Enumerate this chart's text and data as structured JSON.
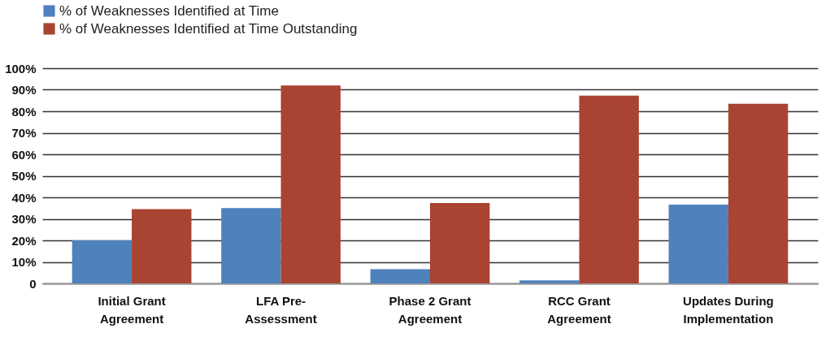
{
  "chart_data": {
    "type": "bar",
    "categories": [
      "Initial Grant\nAgreement",
      "LFA Pre-\nAssessment",
      "Phase 2 Grant\nAgreement",
      "RCC Grant\nAgreement",
      "Updates During\nImplementation"
    ],
    "series": [
      {
        "name": "% of Weaknesses Identified at Time",
        "color": "#4f81bd",
        "values": [
          20,
          35,
          6.6,
          1.4,
          36.6
        ]
      },
      {
        "name": "% of Weaknesses Identified at Time Outstanding",
        "color": "#a94432",
        "values": [
          34.5,
          92,
          37.4,
          87.3,
          83.5
        ]
      }
    ],
    "ylim": [
      0,
      100
    ],
    "yticks": [
      0,
      {
        "value": 10,
        "label": "10%"
      },
      {
        "value": 20,
        "label": "20%"
      },
      {
        "value": 30,
        "label": "30%"
      },
      {
        "value": 40,
        "label": "40%"
      },
      {
        "value": 50,
        "label": "50%"
      },
      {
        "value": 60,
        "label": "60%"
      },
      {
        "value": 70,
        "label": "70%"
      },
      {
        "value": 80,
        "label": "80%"
      },
      {
        "value": 90,
        "label": "90%"
      },
      {
        "value": 100,
        "label": "100%"
      }
    ],
    "grid": "y",
    "legend": "top left"
  }
}
